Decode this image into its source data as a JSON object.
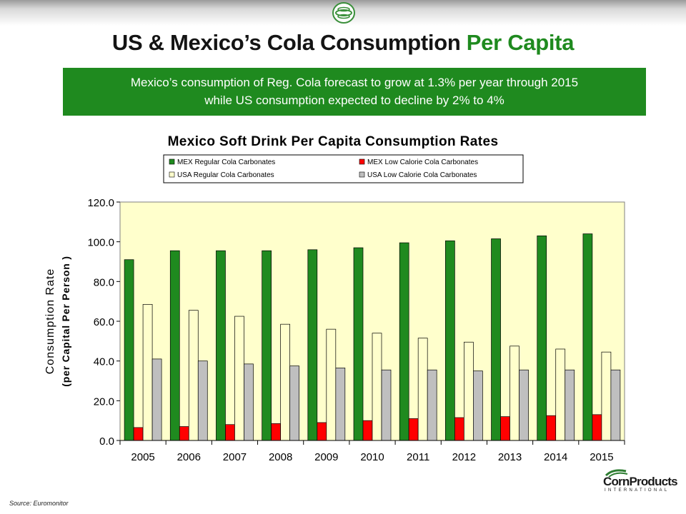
{
  "slide": {
    "title_main": "US & Mexico’s Cola Consumption ",
    "title_accent": "Per Capita",
    "banner_line1": "Mexico’s consumption of Reg. Cola forecast to grow at 1.3% per year through 2015",
    "banner_line2": "while US consumption expected to decline by 2% to 4%",
    "source": "Source: Euromonitor",
    "brand_name": "CornProducts",
    "brand_sub": "INTERNATIONAL",
    "accent_color": "#1f8a1f"
  },
  "chart_data": {
    "type": "bar",
    "title": "Mexico Soft Drink Per Capita Consumption Rates",
    "ylabel_line1": "Consumption Rate",
    "ylabel_line2": "(per Capital Per Person  )",
    "xlabel": "",
    "ylim": [
      0,
      120
    ],
    "ytick_step": 20,
    "ytick_labels": [
      "0.0",
      "20.0",
      "40.0",
      "60.0",
      "80.0",
      "100.0",
      "120.0"
    ],
    "legend_position": "top",
    "grid": false,
    "plot_background": "#ffffcc",
    "categories": [
      "2005",
      "2006",
      "2007",
      "2008",
      "2009",
      "2010",
      "2011",
      "2012",
      "2013",
      "2014",
      "2015"
    ],
    "series": [
      {
        "name": "MEX Regular Cola Carbonates",
        "color": "#1f8a1f",
        "values": [
          91.0,
          95.5,
          95.5,
          95.5,
          96.0,
          97.0,
          99.5,
          100.5,
          101.5,
          103.0,
          104.0
        ]
      },
      {
        "name": "MEX Low Calorie Cola Carbonates",
        "color": "#ff0000",
        "values": [
          6.5,
          7.0,
          8.0,
          8.5,
          9.0,
          10.0,
          11.0,
          11.5,
          12.0,
          12.5,
          13.0
        ]
      },
      {
        "name": "USA Regular Cola Carbonates",
        "color": "#ffffcc",
        "values": [
          68.5,
          65.5,
          62.5,
          58.5,
          56.0,
          54.0,
          51.5,
          49.5,
          47.5,
          46.0,
          44.5
        ]
      },
      {
        "name": "USA Low Calorie Cola Carbonates",
        "color": "#bfbfbf",
        "values": [
          41.0,
          40.0,
          38.5,
          37.5,
          36.5,
          35.5,
          35.5,
          35.0,
          35.5,
          35.5,
          35.5
        ]
      }
    ],
    "legend_order": [
      0,
      1,
      2,
      3
    ]
  }
}
